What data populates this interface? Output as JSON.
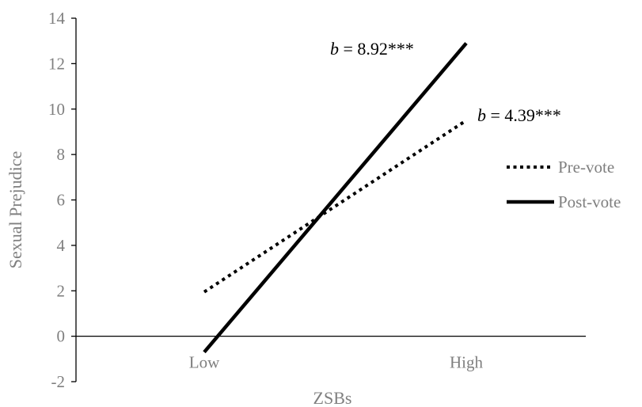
{
  "chart_data": {
    "type": "line",
    "categories": [
      "Low",
      "High"
    ],
    "series": [
      {
        "name": "Pre-vote",
        "values": [
          1.95,
          9.5
        ],
        "style": "dotted",
        "color": "#000000"
      },
      {
        "name": "Post-vote",
        "values": [
          -0.7,
          12.9
        ],
        "style": "solid",
        "color": "#000000"
      }
    ],
    "xlabel": "ZSBs",
    "ylabel": "Sexual Prejudice",
    "ylim": [
      -2,
      14
    ],
    "yticks": [
      -2,
      0,
      2,
      4,
      6,
      8,
      10,
      12,
      14
    ],
    "grid": false,
    "legend": "right",
    "annotations": [
      {
        "series": "Post-vote",
        "b": "b",
        "text": " = 8.92***"
      },
      {
        "series": "Pre-vote",
        "b": "b",
        "text": " = 4.39***"
      }
    ],
    "colors": {
      "ticks": "#7f7f7f",
      "axis": "#000000",
      "lines": "#000000"
    }
  }
}
